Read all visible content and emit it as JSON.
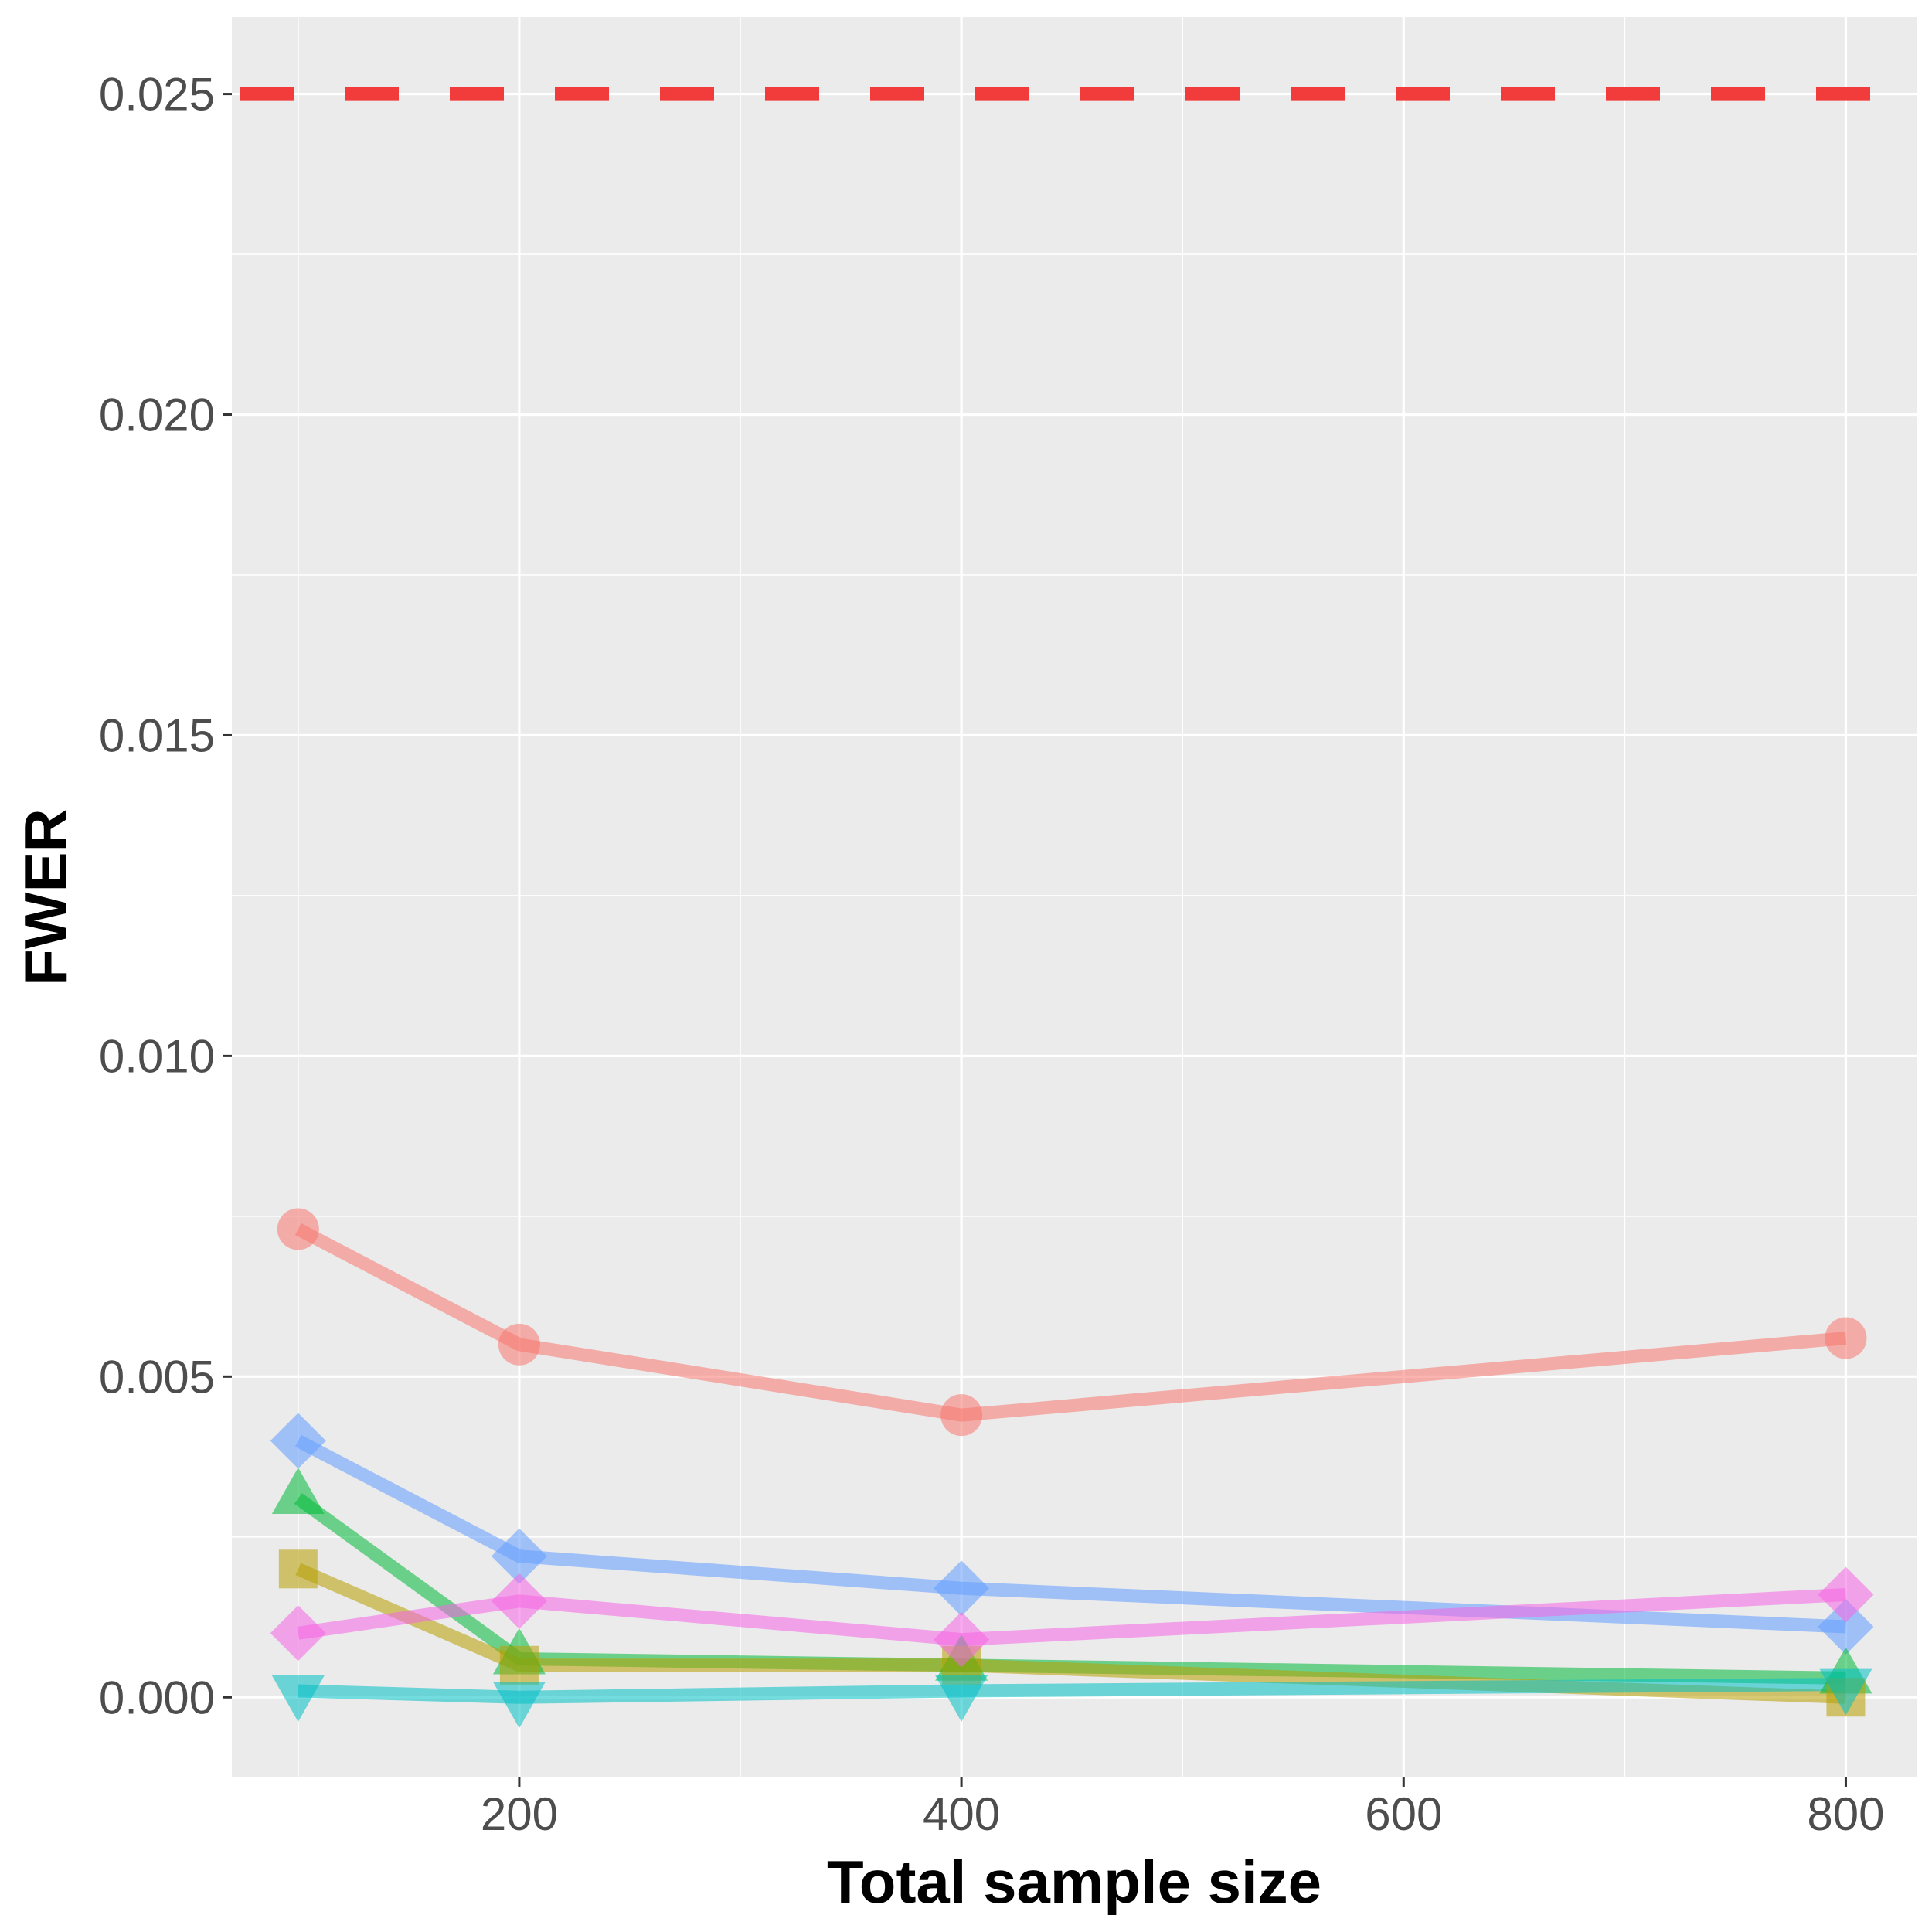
{
  "chart_data": {
    "type": "line",
    "title": "",
    "xlabel": "Total sample size",
    "ylabel": "FWER",
    "xlim": [
      70,
      832
    ],
    "ylim": [
      -0.00125,
      0.0262
    ],
    "x_ticks": [
      200,
      400,
      600,
      800
    ],
    "x_tick_labels": [
      "200",
      "400",
      "600",
      "800"
    ],
    "y_ticks": [
      0.0,
      0.005,
      0.01,
      0.015,
      0.02,
      0.025
    ],
    "y_tick_labels": [
      "0.000",
      "0.005",
      "0.010",
      "0.015",
      "0.020",
      "0.025"
    ],
    "grid": true,
    "background": "#ebebeb",
    "reference_line": {
      "y": 0.025,
      "style": "dashed",
      "color": "#f23b3b"
    },
    "x": [
      100,
      200,
      400,
      800
    ],
    "series": [
      {
        "color": "#f8766d",
        "marker": "circle",
        "values": [
          0.0073,
          0.0055,
          0.0044,
          0.0056
        ]
      },
      {
        "color": "#619cff",
        "marker": "diamond",
        "values": [
          0.004,
          0.0022,
          0.0017,
          0.0011
        ]
      },
      {
        "color": "#00ba38",
        "marker": "triangle-up",
        "values": [
          0.0031,
          0.0006,
          0.0005,
          0.0003
        ]
      },
      {
        "color": "#b79f00",
        "marker": "square",
        "values": [
          0.002,
          0.0005,
          0.0005,
          0.0
        ]
      },
      {
        "color": "#f564e3",
        "marker": "diamond",
        "values": [
          0.001,
          0.0015,
          0.0009,
          0.0016
        ]
      },
      {
        "color": "#00bfc4",
        "marker": "triangle-down",
        "values": [
          0.0001,
          0.0,
          0.0001,
          0.0002
        ]
      }
    ]
  }
}
